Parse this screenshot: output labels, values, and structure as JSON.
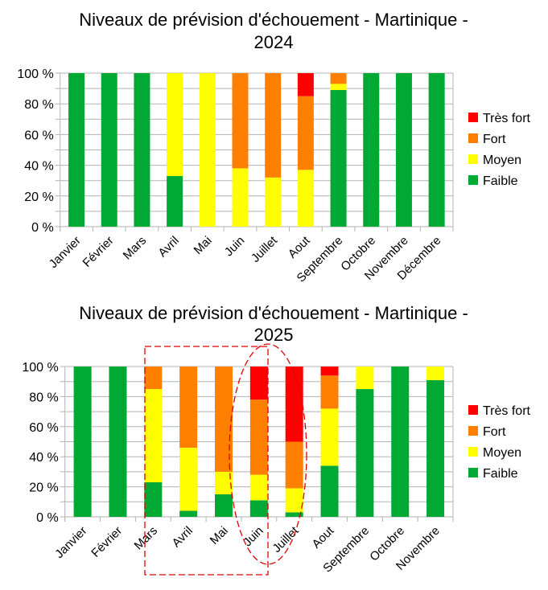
{
  "colors": {
    "Très fort": "#ff0000",
    "Fort": "#ff7f00",
    "Moyen": "#ffff00",
    "Faible": "#00a933"
  },
  "chart_data": [
    {
      "type": "bar",
      "stacked": true,
      "title_line1": "Niveaux de prévision d'échouement - Martinique -",
      "title_line2": "2024",
      "ylim": [
        0,
        100
      ],
      "yticks": [
        "0 %",
        "20 %",
        "40 %",
        "60 %",
        "80 %",
        "100 %"
      ],
      "grid": true,
      "legend": "right",
      "categories": [
        "Janvier",
        "Février",
        "Mars",
        "Avril",
        "Mai",
        "Juin",
        "Juillet",
        "Aout",
        "Septembre",
        "Octobre",
        "Novembre",
        "Décembre"
      ],
      "series": [
        {
          "name": "Faible",
          "values": [
            100,
            100,
            100,
            33,
            0,
            0,
            0,
            0,
            89,
            100,
            100,
            100
          ]
        },
        {
          "name": "Moyen",
          "values": [
            0,
            0,
            0,
            67,
            100,
            38,
            32,
            37,
            4,
            0,
            0,
            0
          ]
        },
        {
          "name": "Fort",
          "values": [
            0,
            0,
            0,
            0,
            0,
            62,
            68,
            48,
            7,
            0,
            0,
            0
          ]
        },
        {
          "name": "Très fort",
          "values": [
            0,
            0,
            0,
            0,
            0,
            0,
            0,
            15,
            0,
            0,
            0,
            0
          ]
        }
      ]
    },
    {
      "type": "bar",
      "stacked": true,
      "title_line1": "Niveaux de prévision d'échouement - Martinique -",
      "title_line2": "2025",
      "ylim": [
        0,
        100
      ],
      "yticks": [
        "0 %",
        "20 %",
        "40 %",
        "60 %",
        "80 %",
        "100 %"
      ],
      "grid": true,
      "legend": "right",
      "categories": [
        "Janvier",
        "Février",
        "Mars",
        "Avril",
        "Mai",
        "Juin",
        "Juillet",
        "Aout",
        "Septembre",
        "Octobre",
        "Novembre"
      ],
      "series": [
        {
          "name": "Faible",
          "values": [
            100,
            100,
            23,
            4,
            15,
            11,
            3,
            34,
            85,
            100,
            91
          ]
        },
        {
          "name": "Moyen",
          "values": [
            0,
            0,
            62,
            42,
            15,
            17,
            16,
            38,
            15,
            0,
            9
          ]
        },
        {
          "name": "Fort",
          "values": [
            0,
            0,
            15,
            54,
            70,
            50,
            31,
            22,
            0,
            0,
            0
          ]
        },
        {
          "name": "Très fort",
          "values": [
            0,
            0,
            0,
            0,
            0,
            22,
            50,
            6,
            0,
            0,
            0
          ]
        }
      ]
    }
  ]
}
